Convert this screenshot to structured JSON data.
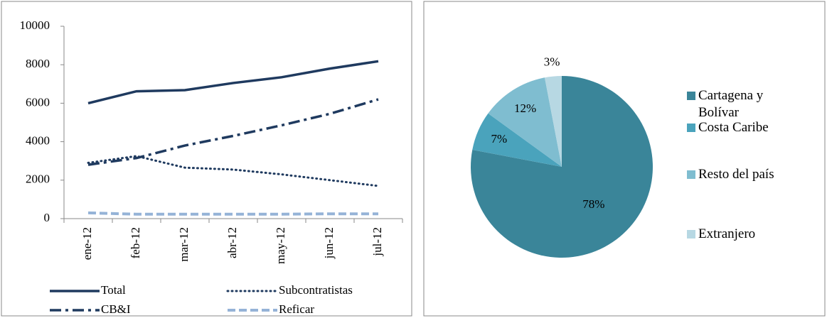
{
  "chart_data": [
    {
      "type": "line",
      "categories": [
        "ene-12",
        "feb-12",
        "mar-12",
        "abr-12",
        "may-12",
        "jun-12",
        "jul-12"
      ],
      "series": [
        {
          "name": "Total",
          "color": "#1f3a5f",
          "values": [
            6000,
            6620,
            6680,
            7050,
            7350,
            7800,
            8180
          ]
        },
        {
          "name": "Subcontratistas",
          "color": "#1f3a5f",
          "values": [
            2900,
            3250,
            2650,
            2550,
            2300,
            2000,
            1700
          ]
        },
        {
          "name": "CB&I",
          "color": "#1f3a5f",
          "values": [
            2800,
            3150,
            3800,
            4300,
            4850,
            5450,
            6200
          ]
        },
        {
          "name": "Reficar",
          "color": "#95b3d7",
          "values": [
            300,
            230,
            230,
            230,
            230,
            250,
            250
          ]
        }
      ],
      "ylim": [
        0,
        10000
      ],
      "yticks": [
        0,
        2000,
        4000,
        6000,
        8000,
        10000
      ]
    },
    {
      "type": "pie",
      "categories": [
        "Cartagena y Bolívar",
        "Costa Caribe",
        "Resto del país",
        "Extranjero"
      ],
      "values": [
        78,
        7,
        12,
        3
      ],
      "value_labels": [
        "78%",
        "7%",
        "12%",
        "3%"
      ],
      "colors": [
        "#3a8599",
        "#4aa3bc",
        "#7fbdd0",
        "#b7d8e3"
      ]
    }
  ]
}
